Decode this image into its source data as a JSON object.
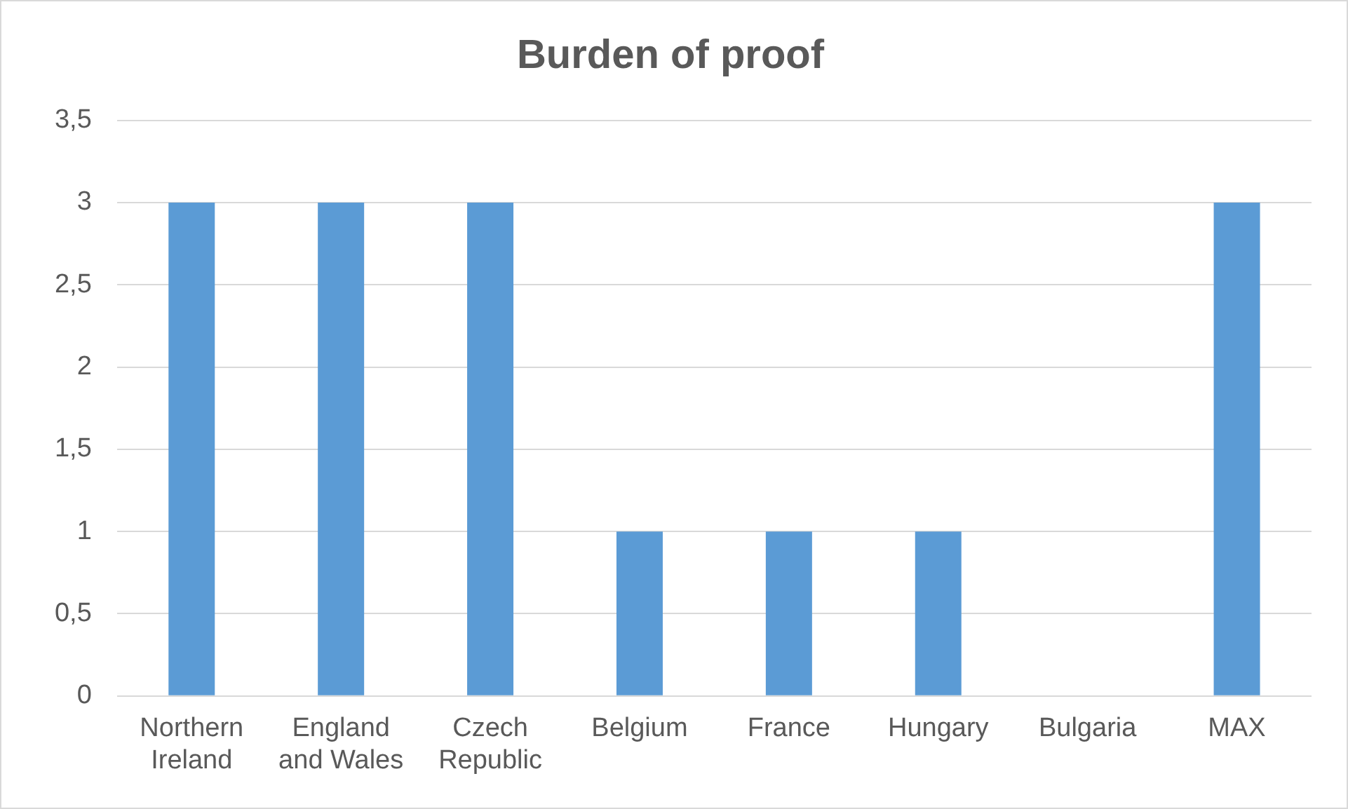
{
  "chart_data": {
    "type": "bar",
    "title": "Burden of proof",
    "categories": [
      "Northern Ireland",
      "England and Wales",
      "Czech Republic",
      "Belgium",
      "France",
      "Hungary",
      "Bulgaria",
      "MAX"
    ],
    "values": [
      3,
      3,
      3,
      1,
      1,
      1,
      0,
      3
    ],
    "color": "#5b9bd5",
    "ylim": [
      0,
      3.5
    ],
    "yticks": [
      0,
      {
        "value": 0.5,
        "label": "0,5"
      },
      1,
      {
        "value": 1.5,
        "label": "1,5"
      },
      2,
      {
        "value": 2.5,
        "label": "2,5"
      },
      3,
      {
        "value": 3.5,
        "label": "3,5"
      }
    ],
    "grid": "y",
    "legend": false
  }
}
